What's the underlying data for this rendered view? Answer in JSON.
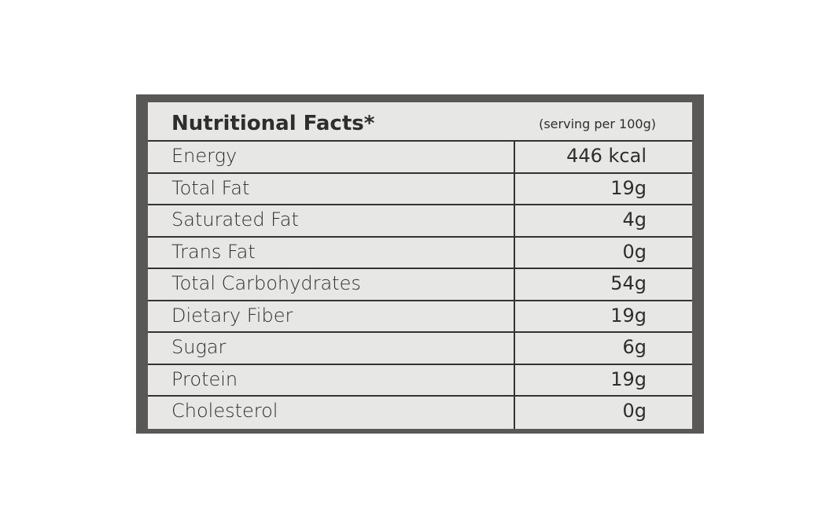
{
  "header": {
    "title": "Nutritional Facts*",
    "serving": "(serving per 100g)"
  },
  "table": {
    "rows": [
      [
        "Energy",
        "446 kcal"
      ],
      [
        "Total Fat",
        "19g"
      ],
      [
        "Saturated Fat",
        "4g"
      ],
      [
        "Trans Fat",
        "0g"
      ],
      [
        "Total Carbohydrates",
        "54g"
      ],
      [
        "Dietary Fiber",
        "19g"
      ],
      [
        "Sugar",
        "6g"
      ],
      [
        "Protein",
        "19g"
      ],
      [
        "Cholesterol",
        "0g"
      ]
    ]
  }
}
